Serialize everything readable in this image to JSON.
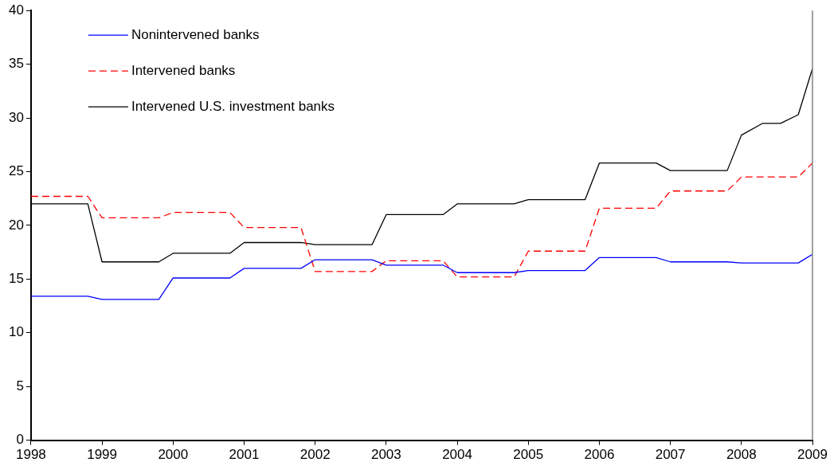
{
  "chart_data": {
    "type": "line",
    "x": [
      1998,
      1998.8,
      1999,
      1999.8,
      2000,
      2000.8,
      2001,
      2001.8,
      2002,
      2002.8,
      2003,
      2003.8,
      2004,
      2004.8,
      2005,
      2005.8,
      2006,
      2006.8,
      2007,
      2007.8,
      2008,
      2008.3,
      2008.55,
      2008.8,
      2009
    ],
    "series": [
      {
        "name": "Nonintervened banks",
        "color": "#0000ff",
        "line_style": "solid",
        "values": [
          13.4,
          13.4,
          13.1,
          13.1,
          15.1,
          15.1,
          16.0,
          16.0,
          16.8,
          16.8,
          16.3,
          16.3,
          15.6,
          15.6,
          15.8,
          15.8,
          17.0,
          17.0,
          16.6,
          16.6,
          16.5,
          16.5,
          16.5,
          16.5,
          17.3
        ]
      },
      {
        "name": "Intervened banks",
        "color": "#ff0000",
        "line_style": "dashed",
        "values": [
          22.7,
          22.7,
          20.7,
          20.7,
          21.2,
          21.2,
          19.8,
          19.8,
          15.7,
          15.7,
          16.7,
          16.7,
          15.2,
          15.2,
          17.6,
          17.6,
          21.6,
          21.6,
          23.2,
          23.2,
          24.5,
          24.5,
          24.5,
          24.5,
          25.8
        ]
      },
      {
        "name": "Intervened U.S. investment banks",
        "color": "#000000",
        "line_style": "solid",
        "values": [
          22.0,
          22.0,
          16.6,
          16.6,
          17.4,
          17.4,
          18.4,
          18.4,
          18.2,
          18.2,
          21.0,
          21.0,
          22.0,
          22.0,
          22.4,
          22.4,
          25.8,
          25.8,
          25.1,
          25.1,
          28.4,
          29.5,
          29.5,
          30.3,
          34.6
        ]
      }
    ],
    "xlim": [
      1998,
      2009
    ],
    "xticks": [
      1998,
      1999,
      2000,
      2001,
      2002,
      2003,
      2004,
      2005,
      2006,
      2007,
      2008,
      2009
    ],
    "ylim": [
      0,
      40
    ],
    "yticks": [
      0,
      5,
      10,
      15,
      20,
      25,
      30,
      35,
      40
    ],
    "grid": false,
    "legend": "top left",
    "marker": "none"
  }
}
